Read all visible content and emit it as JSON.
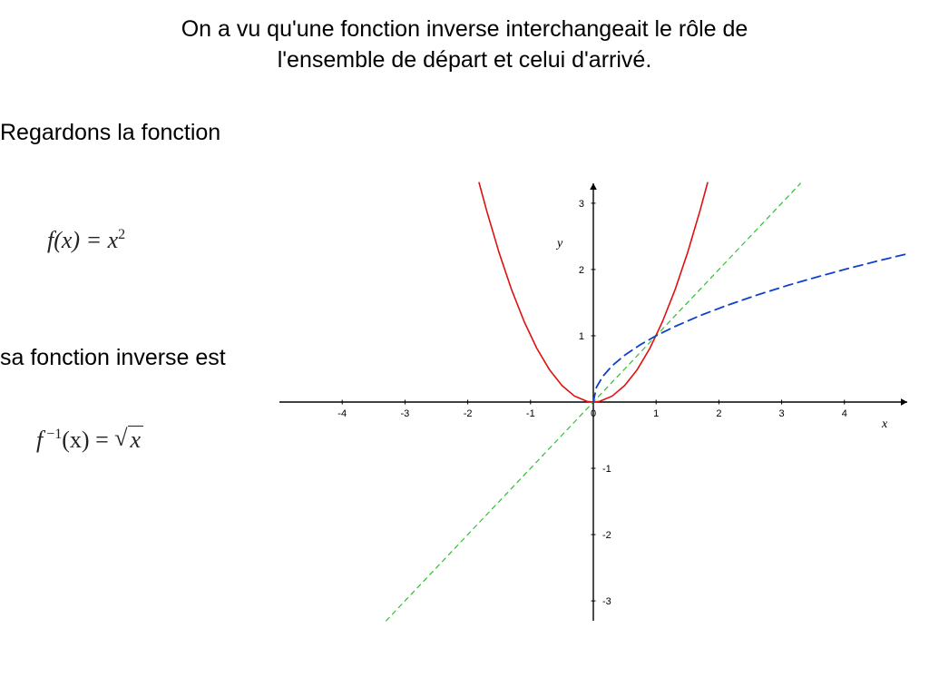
{
  "title": {
    "line1": "On a vu qu'une fonction inverse interchangeait le rôle de",
    "line2": "l'ensemble de départ et celui d'arrivé."
  },
  "text1": "Regardons la fonction",
  "text2": "sa fonction inverse est",
  "eq1": {
    "lhs": "f(x) = x",
    "exp": "2"
  },
  "eq2": {
    "lhs": "f",
    "sup": " −1",
    "mid": "(x) = ",
    "sym": "√",
    "arg": "x"
  },
  "chart": {
    "type": "line",
    "background_color": "#ffffff",
    "axis": {
      "color": "#000000",
      "width": 1.4,
      "arrow_size": 7,
      "xlabel": "x",
      "ylabel": "y",
      "tick_len": 5,
      "tick_color": "#000000",
      "tick_fontsize": 11,
      "label_fontsize": 14
    },
    "xlim": [
      -5,
      5
    ],
    "ylim": [
      -3.3,
      3.3
    ],
    "xticks": [
      -4,
      -3,
      -2,
      -1,
      0,
      1,
      2,
      3,
      4
    ],
    "yticks": [
      -3,
      -2,
      -1,
      1,
      2,
      3
    ],
    "grid": false,
    "series": [
      {
        "name": "identity y=x",
        "color": "#2fbf2f",
        "width": 1.2,
        "dash": "5,5",
        "x": [
          -3.3,
          -3,
          -2.5,
          -2,
          -1.5,
          -1,
          -0.5,
          0,
          0.5,
          1,
          1.5,
          2,
          2.5,
          3,
          3.3
        ],
        "y": [
          -3.3,
          -3,
          -2.5,
          -2,
          -1.5,
          -1,
          -0.5,
          0,
          0.5,
          1,
          1.5,
          2,
          2.5,
          3,
          3.3
        ]
      },
      {
        "name": "parabola y=x^2",
        "color": "#e01010",
        "width": 1.6,
        "dash": "",
        "x": [
          -1.82,
          -1.7,
          -1.5,
          -1.3,
          -1.1,
          -0.9,
          -0.7,
          -0.5,
          -0.3,
          -0.1,
          0,
          0.1,
          0.3,
          0.5,
          0.7,
          0.9,
          1.1,
          1.3,
          1.5,
          1.7,
          1.82
        ],
        "y": [
          3.31,
          2.89,
          2.25,
          1.69,
          1.21,
          0.81,
          0.49,
          0.25,
          0.09,
          0.01,
          0,
          0.01,
          0.09,
          0.25,
          0.49,
          0.81,
          1.21,
          1.69,
          2.25,
          2.89,
          3.31
        ]
      },
      {
        "name": "sqrt y=√x",
        "color": "#1040d0",
        "width": 1.8,
        "dash": "10,6",
        "x": [
          0,
          0.05,
          0.15,
          0.3,
          0.5,
          0.75,
          1,
          1.3,
          1.7,
          2.1,
          2.6,
          3.1,
          3.6,
          4.1,
          4.6,
          5
        ],
        "y": [
          0,
          0.224,
          0.387,
          0.548,
          0.707,
          0.866,
          1,
          1.14,
          1.304,
          1.449,
          1.612,
          1.761,
          1.897,
          2.025,
          2.145,
          2.236
        ]
      }
    ]
  }
}
